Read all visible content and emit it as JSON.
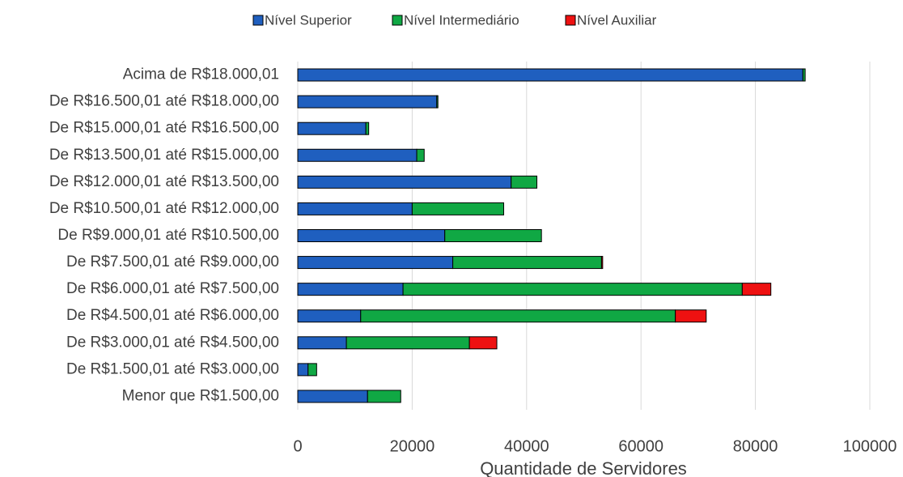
{
  "chart_data": {
    "type": "bar",
    "orientation": "horizontal",
    "stacked": true,
    "x_label": "Quantidade de Servidores",
    "categories": [
      "Acima de R$18.000,01",
      "De R$16.500,01 até R$18.000,00",
      "De R$15.000,01 até R$16.500,00",
      "De R$13.500,01 até R$15.000,00",
      "De R$12.000,01 até R$13.500,00",
      "De R$10.500,01 até R$12.000,00",
      "De R$9.000,01 até R$10.500,00",
      "De R$7.500,01 até R$9.000,00",
      "De R$6.000,01 até R$7.500,00",
      "De R$4.500,01 até R$6.000,00",
      "De R$3.000,01 até R$4.500,00",
      "De R$1.500,01 até R$3.000,00",
      "Menor que R$1.500,00"
    ],
    "series": [
      {
        "name": "Nível Superior",
        "color": "#1f5fbf",
        "values": [
          88300,
          24300,
          11900,
          20800,
          37300,
          20000,
          25700,
          27100,
          18400,
          11000,
          8500,
          1800,
          12200
        ]
      },
      {
        "name": "Nível Intermediário",
        "color": "#10a844",
        "values": [
          400,
          200,
          500,
          1300,
          4500,
          16000,
          16900,
          26000,
          59300,
          55000,
          21500,
          1500,
          5800
        ]
      },
      {
        "name": "Nível Auxiliar",
        "color": "#ee1111",
        "values": [
          0,
          0,
          0,
          0,
          0,
          0,
          0,
          200,
          5000,
          5400,
          4800,
          0,
          0
        ]
      }
    ],
    "xlim": [
      0,
      100000
    ],
    "xticks": [
      0,
      20000,
      40000,
      60000,
      80000,
      100000
    ],
    "grid": true,
    "legend": "top"
  }
}
